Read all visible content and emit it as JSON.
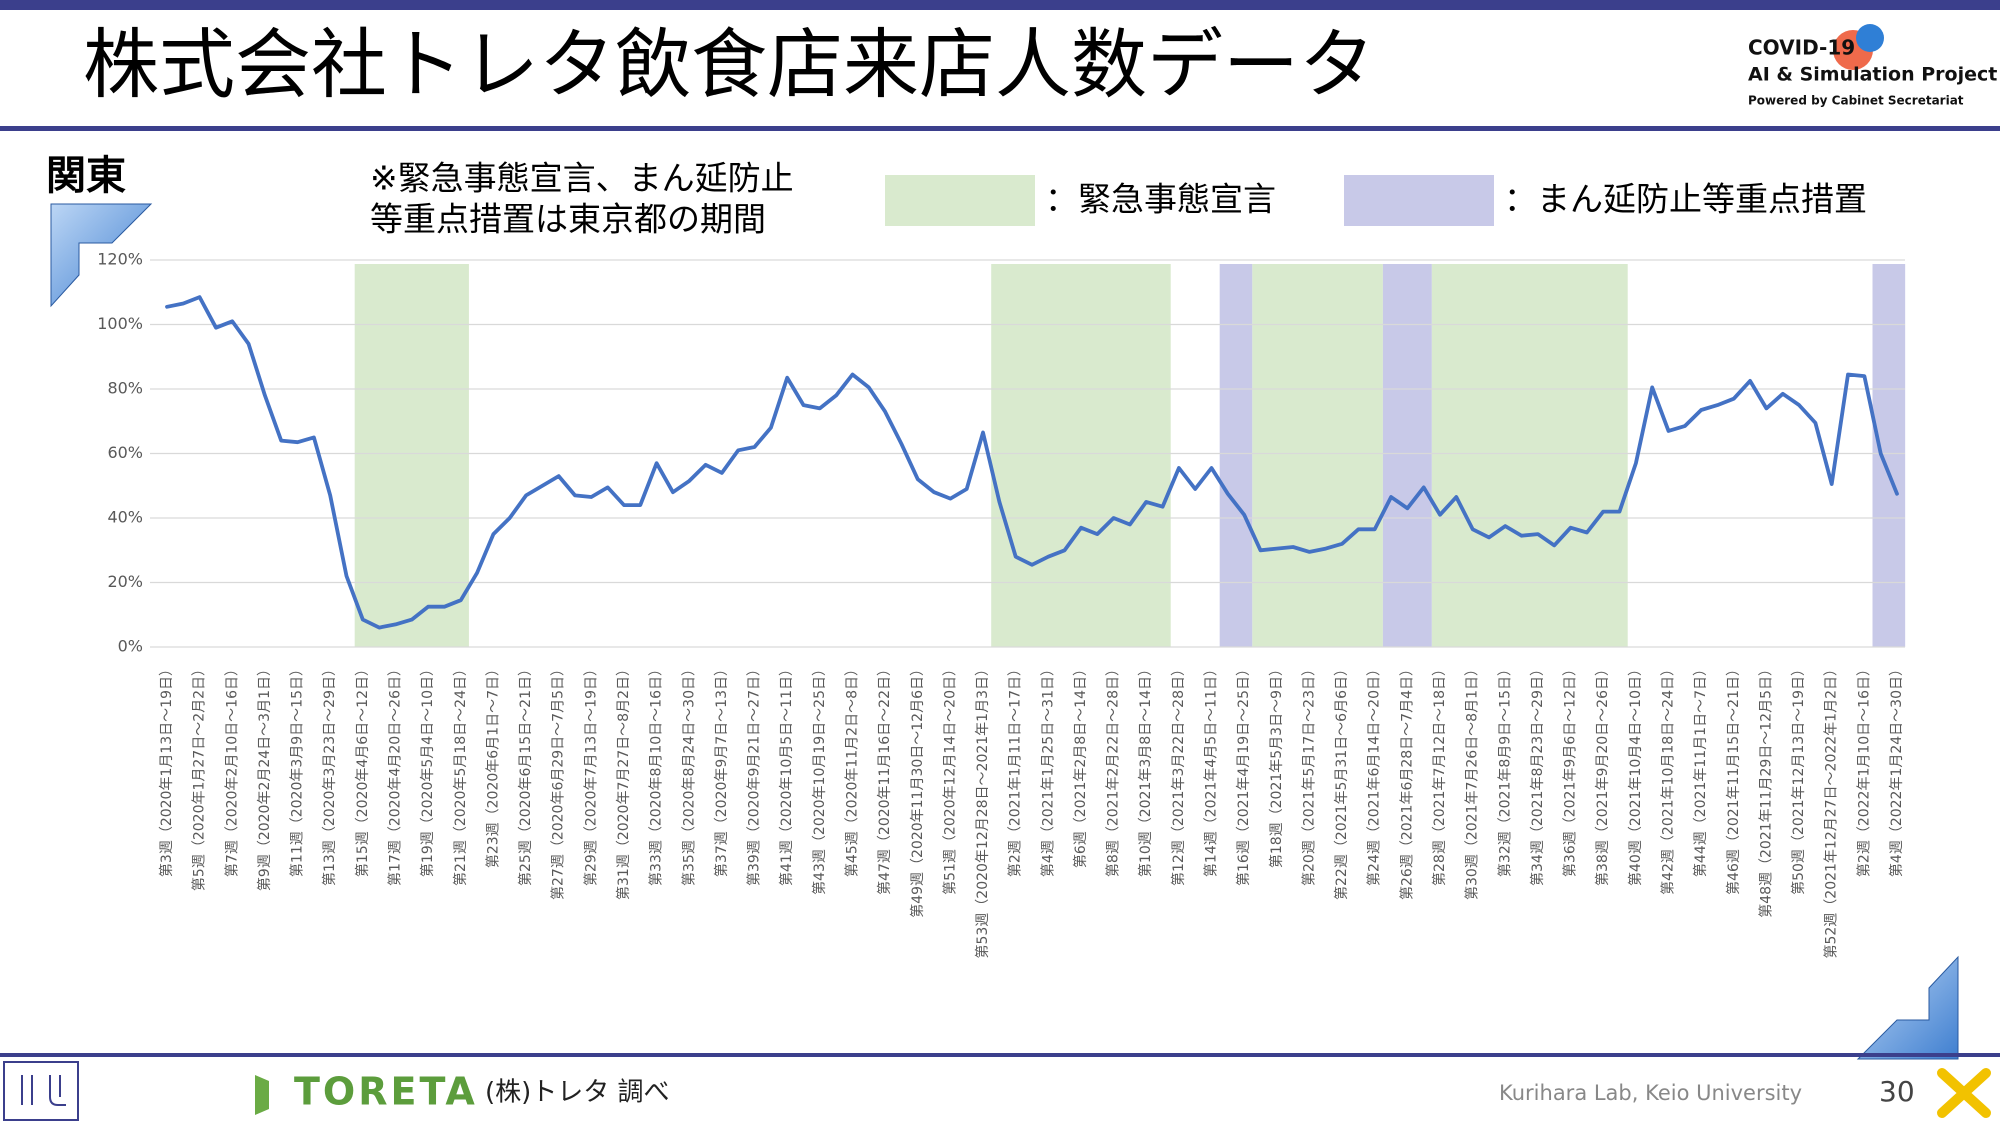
{
  "header": {
    "title": "株式会社トレタ飲食店来店人数データ"
  },
  "logo": {
    "line1": "COVID-19",
    "line2": "AI & Simulation Project",
    "line3": "Powered by Cabinet Secretariat"
  },
  "region": "関東",
  "note": [
    "※緊急事態宣言、まん延防止",
    "等重点措置は東京都の期間"
  ],
  "chart_data": {
    "type": "line",
    "color": "#4472c4",
    "legend": [
      {
        "name": "：緊急事態宣言",
        "color": "#d9eace"
      },
      {
        "name": "：まん延防止等重点措置",
        "color": "#c8c9e8"
      }
    ],
    "bands": [
      {
        "legend": 0,
        "from": 12,
        "to": 18
      },
      {
        "legend": 0,
        "from": 51,
        "to": 61
      },
      {
        "legend": 1,
        "from": 65,
        "to": 66
      },
      {
        "legend": 0,
        "from": 67,
        "to": 74
      },
      {
        "legend": 1,
        "from": 75,
        "to": 77
      },
      {
        "legend": 0,
        "from": 78,
        "to": 89
      },
      {
        "legend": 1,
        "from": 105,
        "to": 106
      }
    ],
    "categories": [
      "第3週（2020年1月13日～19日）",
      null,
      "第5週（2020年1月27日～2月2日）",
      null,
      "第7週（2020年2月10日～16日）",
      null,
      "第9週（2020年2月24日～3月1日）",
      null,
      "第11週（2020年3月9日～15日）",
      null,
      "第13週（2020年3月23日～29日）",
      null,
      "第15週（2020年4月6日～12日）",
      null,
      "第17週（2020年4月20日～26日）",
      null,
      "第19週（2020年5月4日～10日）",
      null,
      "第21週（2020年5月18日～24日）",
      null,
      "第23週（2020年6月1日～7日）",
      null,
      "第25週（2020年6月15日～21日）",
      null,
      "第27週（2020年6月29日～7月5日）",
      null,
      "第29週（2020年7月13日～19日）",
      null,
      "第31週（2020年7月27日～8月2日）",
      null,
      "第33週（2020年8月10日～16日）",
      null,
      "第35週（2020年8月24日～30日）",
      null,
      "第37週（2020年9月7日～13日）",
      null,
      "第39週（2020年9月21日～27日）",
      null,
      "第41週（2020年10月5日～11日）",
      null,
      "第43週（2020年10月19日～25日）",
      null,
      "第45週（2020年11月2日～8日）",
      null,
      "第47週（2020年11月16日～22日）",
      null,
      "第49週（2020年11月30日～12月6日）",
      null,
      "第51週（2020年12月14日～20日）",
      null,
      "第53週（2020年12月28日～2021年1月3日）",
      null,
      "第2週（2021年1月11日～17日）",
      null,
      "第4週（2021年1月25日～31日）",
      null,
      "第6週（2021年2月8日～14日）",
      null,
      "第8週（2021年2月22日～28日）",
      null,
      "第10週（2021年3月8日～14日）",
      null,
      "第12週（2021年3月22日～28日）",
      null,
      "第14週（2021年4月5日～11日）",
      null,
      "第16週（2021年4月19日～25日）",
      null,
      "第18週（2021年5月3日～9日）",
      null,
      "第20週（2021年5月17日～23日）",
      null,
      "第22週（2021年5月31日～6月6日）",
      null,
      "第24週（2021年6月14日～20日）",
      null,
      "第26週（2021年6月28日～7月4日）",
      null,
      "第28週（2021年7月12日～18日）",
      null,
      "第30週（2021年7月26日～8月1日）",
      null,
      "第32週（2021年8月9日～15日）",
      null,
      "第34週（2021年8月23日～29日）",
      null,
      "第36週（2021年9月6日～12日）",
      null,
      "第38週（2021年9月20日～26日）",
      null,
      "第40週（2021年10月4日～10日）",
      null,
      "第42週（2021年10月18日～24日）",
      null,
      "第44週（2021年11月1日～7日）",
      null,
      "第46週（2021年11月15日～21日）",
      null,
      "第48週（2021年11月29日～12月5日）",
      null,
      "第50週（2021年12月13日～19日）",
      null,
      "第52週（2021年12月27日～2022年1月2日）",
      null,
      "第2週（2022年1月10日～16日）",
      null,
      "第4週（2022年1月24日～30日）"
    ],
    "values": [
      105.5,
      106.5,
      108.5,
      99,
      101,
      94,
      78,
      64,
      63.5,
      65,
      47,
      22,
      8.5,
      6,
      7,
      8.5,
      12.5,
      12.5,
      14.5,
      23,
      35,
      40,
      47,
      50,
      53,
      47,
      46.5,
      49.5,
      44,
      44,
      57,
      48,
      51.5,
      56.5,
      54,
      61,
      62,
      68,
      83.5,
      75,
      74,
      78,
      84.5,
      80.5,
      73,
      63,
      52,
      48,
      46,
      49,
      66.5,
      45,
      28,
      25.5,
      28,
      30,
      37,
      35,
      40,
      38,
      45,
      43.5,
      55.5,
      49,
      55.5,
      47.5,
      41,
      30,
      30.5,
      31,
      29.5,
      30.5,
      32,
      36.5,
      36.5,
      46.5,
      43,
      49.5,
      41,
      46.5,
      36.5,
      34,
      37.5,
      34.5,
      35,
      31.5,
      37,
      35.5,
      42,
      42,
      57,
      80.5,
      67,
      68.5,
      73.5,
      75,
      77,
      82.5,
      74,
      78.5,
      75,
      69.5,
      50.5,
      84.5,
      84,
      60,
      47.5
    ],
    "ylim": [
      0,
      120
    ],
    "yticks": [
      {
        "value": 0,
        "label": "0%"
      },
      {
        "value": 20,
        "label": "20%"
      },
      {
        "value": 40,
        "label": "40%"
      },
      {
        "value": 60,
        "label": "60%"
      },
      {
        "value": 80,
        "label": "80%"
      },
      {
        "value": 100,
        "label": "100%"
      },
      {
        "value": 120,
        "label": "120%"
      }
    ],
    "grid": true
  },
  "footer": {
    "brand": "TORETA",
    "source": "(株)トレタ 調べ",
    "credit": "Kurihara Lab, Keio University",
    "page": "30"
  }
}
